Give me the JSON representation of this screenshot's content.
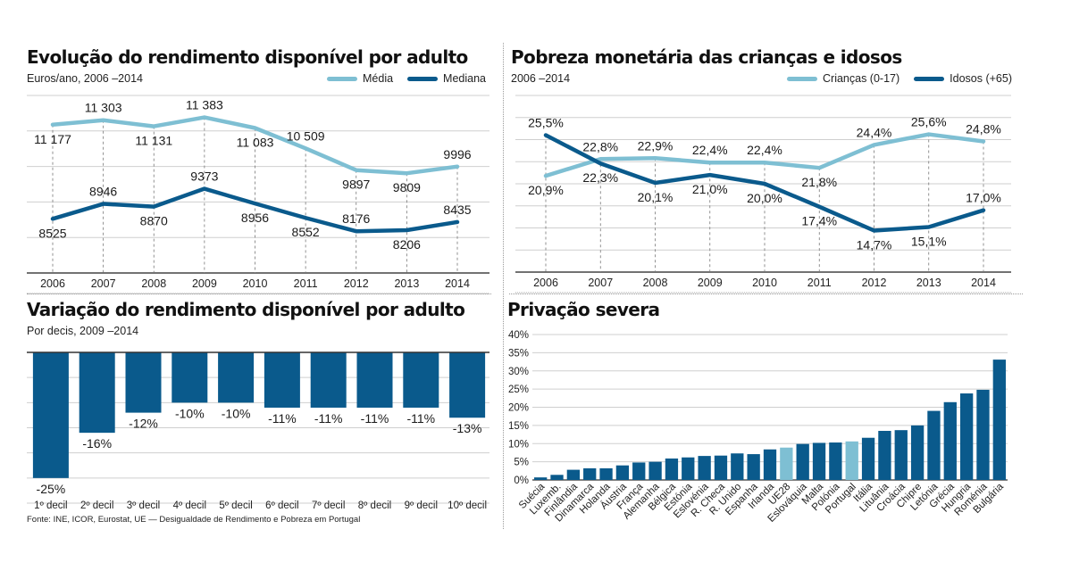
{
  "colors": {
    "light_blue": "#7ebfd3",
    "dark_blue": "#0a5a8c",
    "bar_blue": "#0a5a8c",
    "highlight_bar": "#7ebfd3",
    "grid": "#cfcfcf",
    "axis": "#444444"
  },
  "source": "Fonte: INE, ICOR, Eurostat, UE  — Desigualdade de Rendimento e Pobreza em Portugal",
  "chart_data": [
    {
      "id": "rendimento",
      "type": "line",
      "title": "Evolução do rendimento disponível por adulto",
      "subtitle": "Euros/ano, 2006 –2014",
      "x": [
        "2006",
        "2007",
        "2008",
        "2009",
        "2010",
        "2011",
        "2012",
        "2013",
        "2014"
      ],
      "ylim": [
        7000,
        12000
      ],
      "ygrid_step": 1000,
      "grid": true,
      "legend_position": "top-right",
      "series": [
        {
          "name": "Média",
          "color_key": "light_blue",
          "values": [
            11177,
            11303,
            11131,
            11383,
            11083,
            10509,
            9897,
            9809,
            9996
          ],
          "labels": [
            "11 177",
            "11 303",
            "11 131",
            "11 383",
            "11 083",
            "10 509",
            "9897",
            "9809",
            "9996"
          ],
          "label_pos": [
            "below",
            "above",
            "below",
            "above",
            "below",
            "above",
            "below",
            "below",
            "above"
          ]
        },
        {
          "name": "Mediana",
          "color_key": "dark_blue",
          "values": [
            8525,
            8946,
            8870,
            9373,
            8956,
            8552,
            8176,
            8206,
            8435
          ],
          "labels": [
            "8525",
            "8946",
            "8870",
            "9373",
            "8956",
            "8552",
            "8176",
            "8206",
            "8435"
          ],
          "label_pos": [
            "below",
            "above",
            "below",
            "above",
            "below",
            "below",
            "above",
            "below",
            "above"
          ]
        }
      ]
    },
    {
      "id": "pobreza",
      "type": "line",
      "title": "Pobreza monetária das crianças e idosos",
      "subtitle": "2006 –2014",
      "x": [
        "2006",
        "2007",
        "2008",
        "2009",
        "2010",
        "2011",
        "2012",
        "2013",
        "2014"
      ],
      "ylim": [
        10,
        30
      ],
      "ygrid_step": 2.5,
      "grid": true,
      "legend_position": "top-right",
      "series": [
        {
          "name": "Crianças (0-17)",
          "color_key": "light_blue",
          "values": [
            20.9,
            22.8,
            22.9,
            22.4,
            22.4,
            21.8,
            24.4,
            25.6,
            24.8
          ],
          "labels": [
            "20,9%",
            "22,8%",
            "22,9%",
            "22,4%",
            "22,4%",
            "21,8%",
            "24,4%",
            "25,6%",
            "24,8%"
          ],
          "label_pos": [
            "below",
            "above",
            "above",
            "above",
            "above",
            "below",
            "above",
            "above",
            "above"
          ]
        },
        {
          "name": "Idosos (+65)",
          "color_key": "dark_blue",
          "values": [
            25.5,
            22.3,
            20.1,
            21.0,
            20.0,
            17.4,
            14.7,
            15.1,
            17.0
          ],
          "labels": [
            "25,5%",
            "22,3%",
            "20,1%",
            "21,0%",
            "20,0%",
            "17,4%",
            "14,7%",
            "15,1%",
            "17,0%"
          ],
          "label_pos": [
            "above",
            "below",
            "below",
            "below",
            "below",
            "below",
            "below",
            "below",
            "above"
          ]
        }
      ]
    },
    {
      "id": "variacao",
      "type": "bar",
      "title": "Variação do rendimento disponível por adulto",
      "subtitle": "Por decis, 2009 –2014",
      "categories": [
        "1º decil",
        "2º decil",
        "3º decil",
        "4º decil",
        "5º decil",
        "6º decil",
        "7º decil",
        "8º decil",
        "9º decil",
        "10º decil"
      ],
      "values": [
        -25,
        -16,
        -12,
        -10,
        -10,
        -11,
        -11,
        -11,
        -11,
        -13
      ],
      "labels": [
        "-25%",
        "-16%",
        "-12%",
        "-10%",
        "-10%",
        "-11%",
        "-11%",
        "-11%",
        "-11%",
        "-13%"
      ],
      "ylim": [
        -30,
        0
      ],
      "ygrid_step": 5,
      "grid": true
    },
    {
      "id": "privacao",
      "type": "bar",
      "title": "Privação severa",
      "categories": [
        "Suécia",
        "Luxemb.",
        "Finlândia",
        "Dinamarca",
        "Holanda",
        "Áustria",
        "França",
        "Alemanha",
        "Bélgica",
        "Estónia",
        "Eslovénia",
        "R. Checa",
        "R. Unido",
        "Espanha",
        "Irlanda",
        "UE28",
        "Eslováquia",
        "Malta",
        "Polónia",
        "Portugal",
        "Itália",
        "Lituânia",
        "Croácia",
        "Chipre",
        "Letónia",
        "Grécia",
        "Hungria",
        "Roménia",
        "Bulgária"
      ],
      "values": [
        0.7,
        1.4,
        2.8,
        3.2,
        3.2,
        4.0,
        4.8,
        5.0,
        5.9,
        6.2,
        6.6,
        6.7,
        7.3,
        7.1,
        8.4,
        8.9,
        9.9,
        10.2,
        10.3,
        10.6,
        11.6,
        13.5,
        13.7,
        15.0,
        19.0,
        21.4,
        23.8,
        24.8,
        33.1
      ],
      "highlight": [
        "UE28",
        "Portugal"
      ],
      "yticks": [
        "0%",
        "5%",
        "10%",
        "15%",
        "20%",
        "25%",
        "30%",
        "35%",
        "40%"
      ],
      "ylim": [
        0,
        40
      ],
      "ygrid_step": 5,
      "grid": true
    }
  ]
}
